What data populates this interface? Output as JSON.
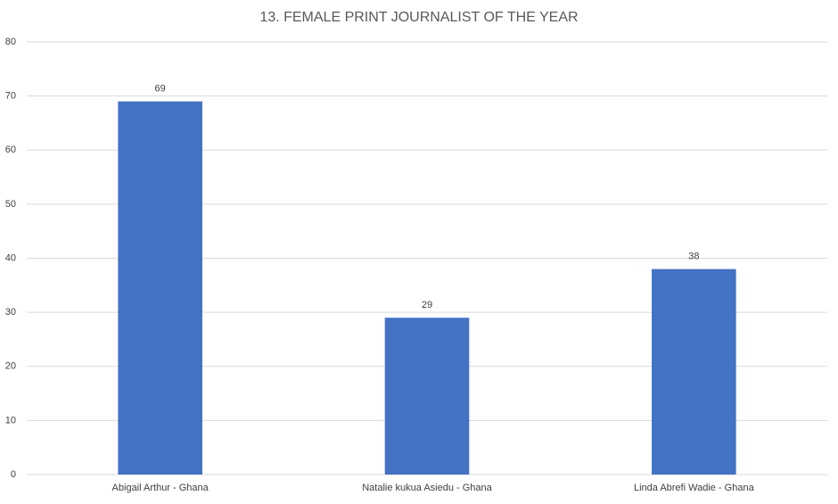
{
  "chart_data": {
    "type": "bar",
    "title": "13. FEMALE PRINT JOURNALIST OF THE YEAR",
    "categories": [
      "Abigail Arthur - Ghana",
      "Natalie kukua Asiedu - Ghana",
      "Linda Abrefi Wadie - Ghana"
    ],
    "values": [
      69,
      29,
      38
    ],
    "color": "#4472c4",
    "ylim": [
      0,
      80
    ],
    "yticks": [
      0,
      10,
      20,
      30,
      40,
      50,
      60,
      70,
      80
    ],
    "grid": true
  }
}
